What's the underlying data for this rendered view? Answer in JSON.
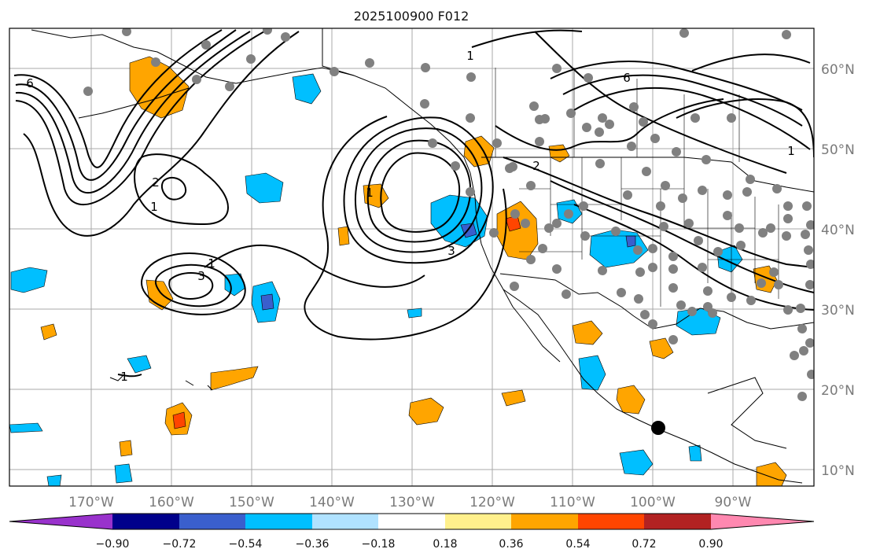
{
  "title": "2025100900 F012",
  "map": {
    "lon_ticks": [
      "170°W",
      "160°W",
      "150°W",
      "140°W",
      "130°W",
      "120°W",
      "110°W",
      "100°W",
      "90°W"
    ],
    "lat_ticks": [
      "60°N",
      "50°N",
      "40°N",
      "30°N",
      "20°N",
      "10°N"
    ],
    "contour_labels": [
      "6",
      "6",
      "1",
      "2",
      "1",
      "3",
      "1",
      "3",
      "2",
      "1",
      "1",
      "1"
    ],
    "colors": {
      "contour": "#000000",
      "grid": "#a0a0a0",
      "station_dot": "#808080",
      "marker": "#000000"
    }
  },
  "colorbar": {
    "levels": [
      "−0.90",
      "−0.72",
      "−0.54",
      "−0.36",
      "−0.18",
      "0.18",
      "0.36",
      "0.54",
      "0.72",
      "0.90"
    ],
    "colors": [
      "#9932cc",
      "#00008b",
      "#3a5fcd",
      "#00bfff",
      "#b0e2ff",
      "#ffffff",
      "#fff08c",
      "#ffa500",
      "#ff4500",
      "#b22222",
      "#ff88b0"
    ]
  }
}
